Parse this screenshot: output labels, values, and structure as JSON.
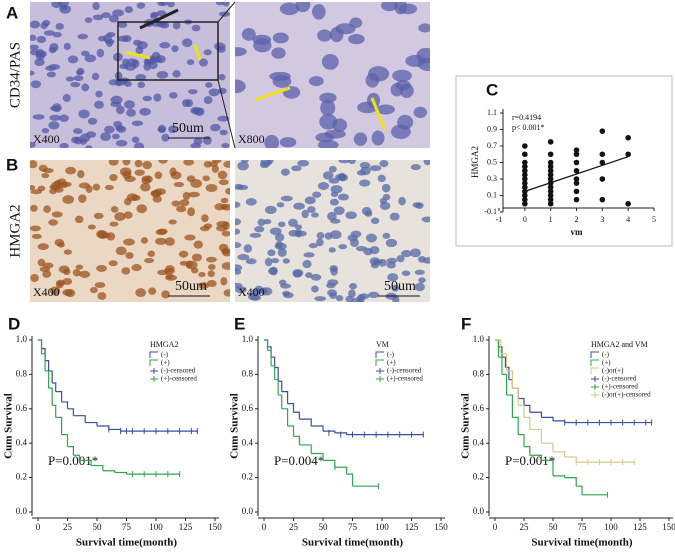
{
  "panels": {
    "A": {
      "label": "A",
      "row_label": "CD34/PAS",
      "images": [
        {
          "magnification": "X400",
          "scale": "50um"
        },
        {
          "magnification": "X800"
        }
      ]
    },
    "B": {
      "label": "B",
      "row_label": "HMGA2",
      "images": [
        {
          "magnification": "X400",
          "scale": "50um"
        },
        {
          "magnification": "X400",
          "scale": "50um"
        }
      ]
    }
  },
  "chart_data": [
    {
      "type": "scatter",
      "panel_label": "C",
      "annotations": [
        "r=0.4194",
        "p< 0.001*"
      ],
      "x_label": "vm",
      "y_label": "HMGA2",
      "xlim": [
        -1,
        5
      ],
      "xticks": [
        -1,
        0,
        1,
        2,
        3,
        4,
        5
      ],
      "ylim": [
        -0.1,
        1.1
      ],
      "yticks": [
        -0.1,
        0.1,
        0.3,
        0.5,
        0.7,
        0.9,
        1.1
      ],
      "color": "#111111",
      "x": [
        0,
        0,
        0,
        0,
        0,
        0,
        0,
        0,
        0,
        0,
        0,
        0,
        0,
        1,
        1,
        1,
        1,
        1,
        1,
        1,
        1,
        1,
        1,
        1,
        1,
        1,
        2,
        2,
        2,
        2,
        2,
        2,
        2,
        2,
        3,
        3,
        3,
        3,
        3,
        4,
        4,
        4
      ],
      "y": [
        0.0,
        0.05,
        0.1,
        0.15,
        0.2,
        0.25,
        0.3,
        0.35,
        0.4,
        0.45,
        0.5,
        0.6,
        0.7,
        0.0,
        0.05,
        0.1,
        0.15,
        0.2,
        0.25,
        0.3,
        0.35,
        0.4,
        0.45,
        0.5,
        0.6,
        0.75,
        0.05,
        0.15,
        0.25,
        0.3,
        0.4,
        0.5,
        0.6,
        0.65,
        0.05,
        0.3,
        0.5,
        0.6,
        0.88,
        0.0,
        0.6,
        0.8
      ],
      "fit_line": {
        "x": [
          0,
          4
        ],
        "y": [
          0.15,
          0.57
        ]
      }
    },
    {
      "type": "survival",
      "panel_label": "D",
      "legend_title": "HMGA2",
      "legend": "upper right",
      "p_value": "P=0.001*",
      "x_label": "Survival time(month)",
      "y_label": "Cum Survival",
      "xlim": [
        0,
        150
      ],
      "xticks": [
        0,
        25,
        50,
        75,
        100,
        125,
        150
      ],
      "ylim": [
        0,
        1
      ],
      "yticks": [
        {
          "value": 0,
          "label": "0.0"
        },
        0.2,
        0.4,
        0.6,
        0.8,
        {
          "value": 1,
          "label": "1.0"
        }
      ],
      "series": [
        {
          "name": "(-)",
          "color": "#3a4ea3",
          "x": [
            0,
            3,
            6,
            9,
            12,
            15,
            20,
            25,
            30,
            40,
            50,
            60,
            70,
            135
          ],
          "values": [
            1,
            0.95,
            0.88,
            0.82,
            0.75,
            0.7,
            0.64,
            0.6,
            0.56,
            0.52,
            0.5,
            0.48,
            0.47,
            0.47
          ]
        },
        {
          "name": "(+)",
          "color": "#2fa84a",
          "x": [
            0,
            3,
            6,
            9,
            12,
            15,
            20,
            25,
            30,
            35,
            45,
            55,
            65,
            75,
            120
          ],
          "values": [
            1,
            0.92,
            0.82,
            0.72,
            0.62,
            0.55,
            0.45,
            0.38,
            0.33,
            0.3,
            0.27,
            0.24,
            0.23,
            0.22,
            0.22
          ]
        },
        {
          "name": "(-)-censored",
          "color": "#3a4ea3",
          "marker": "tick",
          "x": [
            60,
            70,
            75,
            80,
            90,
            100,
            110,
            120,
            130,
            135
          ],
          "values": [
            0.48,
            0.47,
            0.47,
            0.47,
            0.47,
            0.47,
            0.47,
            0.47,
            0.47,
            0.47
          ]
        },
        {
          "name": "(+)-censored",
          "color": "#2fa84a",
          "marker": "tick",
          "x": [
            80,
            90,
            100,
            110,
            120
          ],
          "values": [
            0.22,
            0.22,
            0.22,
            0.22,
            0.22
          ]
        }
      ]
    },
    {
      "type": "survival",
      "panel_label": "E",
      "legend_title": "VM",
      "legend": "upper right",
      "p_value": "P=0.004*",
      "x_label": "Survival time(month)",
      "y_label": "Cum Survival",
      "xlim": [
        0,
        150
      ],
      "xticks": [
        0,
        25,
        50,
        75,
        100,
        125,
        150
      ],
      "ylim": [
        0,
        1
      ],
      "yticks": [
        {
          "value": 0,
          "label": "0.0"
        },
        0.2,
        0.4,
        0.6,
        0.8,
        {
          "value": 1,
          "label": "1.0"
        }
      ],
      "series": [
        {
          "name": "(-)",
          "color": "#3a4ea3",
          "x": [
            0,
            3,
            6,
            9,
            12,
            15,
            20,
            25,
            30,
            40,
            50,
            60,
            70,
            135
          ],
          "values": [
            1,
            0.96,
            0.9,
            0.84,
            0.76,
            0.7,
            0.63,
            0.58,
            0.54,
            0.5,
            0.47,
            0.46,
            0.45,
            0.45
          ]
        },
        {
          "name": "(+)",
          "color": "#2fa84a",
          "x": [
            0,
            3,
            6,
            9,
            12,
            15,
            20,
            25,
            30,
            40,
            50,
            60,
            70,
            75,
            97
          ],
          "values": [
            1,
            0.94,
            0.85,
            0.77,
            0.68,
            0.6,
            0.5,
            0.44,
            0.39,
            0.34,
            0.3,
            0.26,
            0.22,
            0.15,
            0.15
          ]
        },
        {
          "name": "(-)-censored",
          "color": "#3a4ea3",
          "marker": "tick",
          "x": [
            55,
            65,
            75,
            85,
            95,
            105,
            115,
            125,
            135
          ],
          "values": [
            0.46,
            0.45,
            0.45,
            0.45,
            0.45,
            0.45,
            0.45,
            0.45,
            0.45
          ]
        },
        {
          "name": "(+)-censored",
          "color": "#2fa84a",
          "marker": "tick",
          "x": [
            60,
            97
          ],
          "values": [
            0.26,
            0.15
          ]
        }
      ]
    },
    {
      "type": "survival",
      "panel_label": "F",
      "legend_title": "HMGA2 and VM",
      "legend": "upper right",
      "p_value": "P=0.001*",
      "x_label": "Survival time(month)",
      "y_label": "Cum Survival",
      "xlim": [
        0,
        150
      ],
      "xticks": [
        0,
        25,
        50,
        75,
        100,
        125,
        150
      ],
      "ylim": [
        0,
        1
      ],
      "yticks": [
        {
          "value": 0,
          "label": "0.0"
        },
        0.2,
        0.4,
        0.6,
        0.8,
        {
          "value": 1,
          "label": "1.0"
        }
      ],
      "series": [
        {
          "name": "(-)",
          "color": "#3a4ea3",
          "x": [
            0,
            3,
            6,
            9,
            12,
            15,
            20,
            25,
            30,
            40,
            50,
            60,
            70,
            135
          ],
          "values": [
            1,
            0.96,
            0.9,
            0.84,
            0.77,
            0.72,
            0.66,
            0.62,
            0.58,
            0.55,
            0.53,
            0.52,
            0.52,
            0.52
          ]
        },
        {
          "name": "(+)",
          "color": "#2fa84a",
          "x": [
            0,
            3,
            6,
            10,
            15,
            20,
            25,
            30,
            40,
            50,
            60,
            70,
            75,
            97
          ],
          "values": [
            1,
            0.9,
            0.8,
            0.68,
            0.55,
            0.45,
            0.38,
            0.33,
            0.3,
            0.21,
            0.2,
            0.15,
            0.1,
            0.1
          ]
        },
        {
          "name": "(-)or(+)",
          "color": "#d6c98a",
          "x": [
            0,
            5,
            10,
            15,
            20,
            25,
            30,
            40,
            50,
            60,
            70,
            120
          ],
          "values": [
            1,
            0.92,
            0.82,
            0.72,
            0.62,
            0.55,
            0.48,
            0.4,
            0.35,
            0.32,
            0.29,
            0.29
          ]
        },
        {
          "name": "(-)-censored",
          "color": "#3a4ea3",
          "marker": "tick",
          "x": [
            60,
            70,
            80,
            90,
            100,
            110,
            120,
            130,
            135
          ],
          "values": [
            0.52,
            0.52,
            0.52,
            0.52,
            0.52,
            0.52,
            0.52,
            0.52,
            0.52
          ]
        },
        {
          "name": "(+)-censored",
          "color": "#2fa84a",
          "marker": "tick",
          "x": [
            97
          ],
          "values": [
            0.1
          ]
        },
        {
          "name": "(-)or(+)-censored",
          "color": "#d6c98a",
          "marker": "tick",
          "x": [
            70,
            80,
            90,
            100,
            110,
            120
          ],
          "values": [
            0.29,
            0.29,
            0.29,
            0.29,
            0.29,
            0.29
          ]
        }
      ]
    }
  ]
}
